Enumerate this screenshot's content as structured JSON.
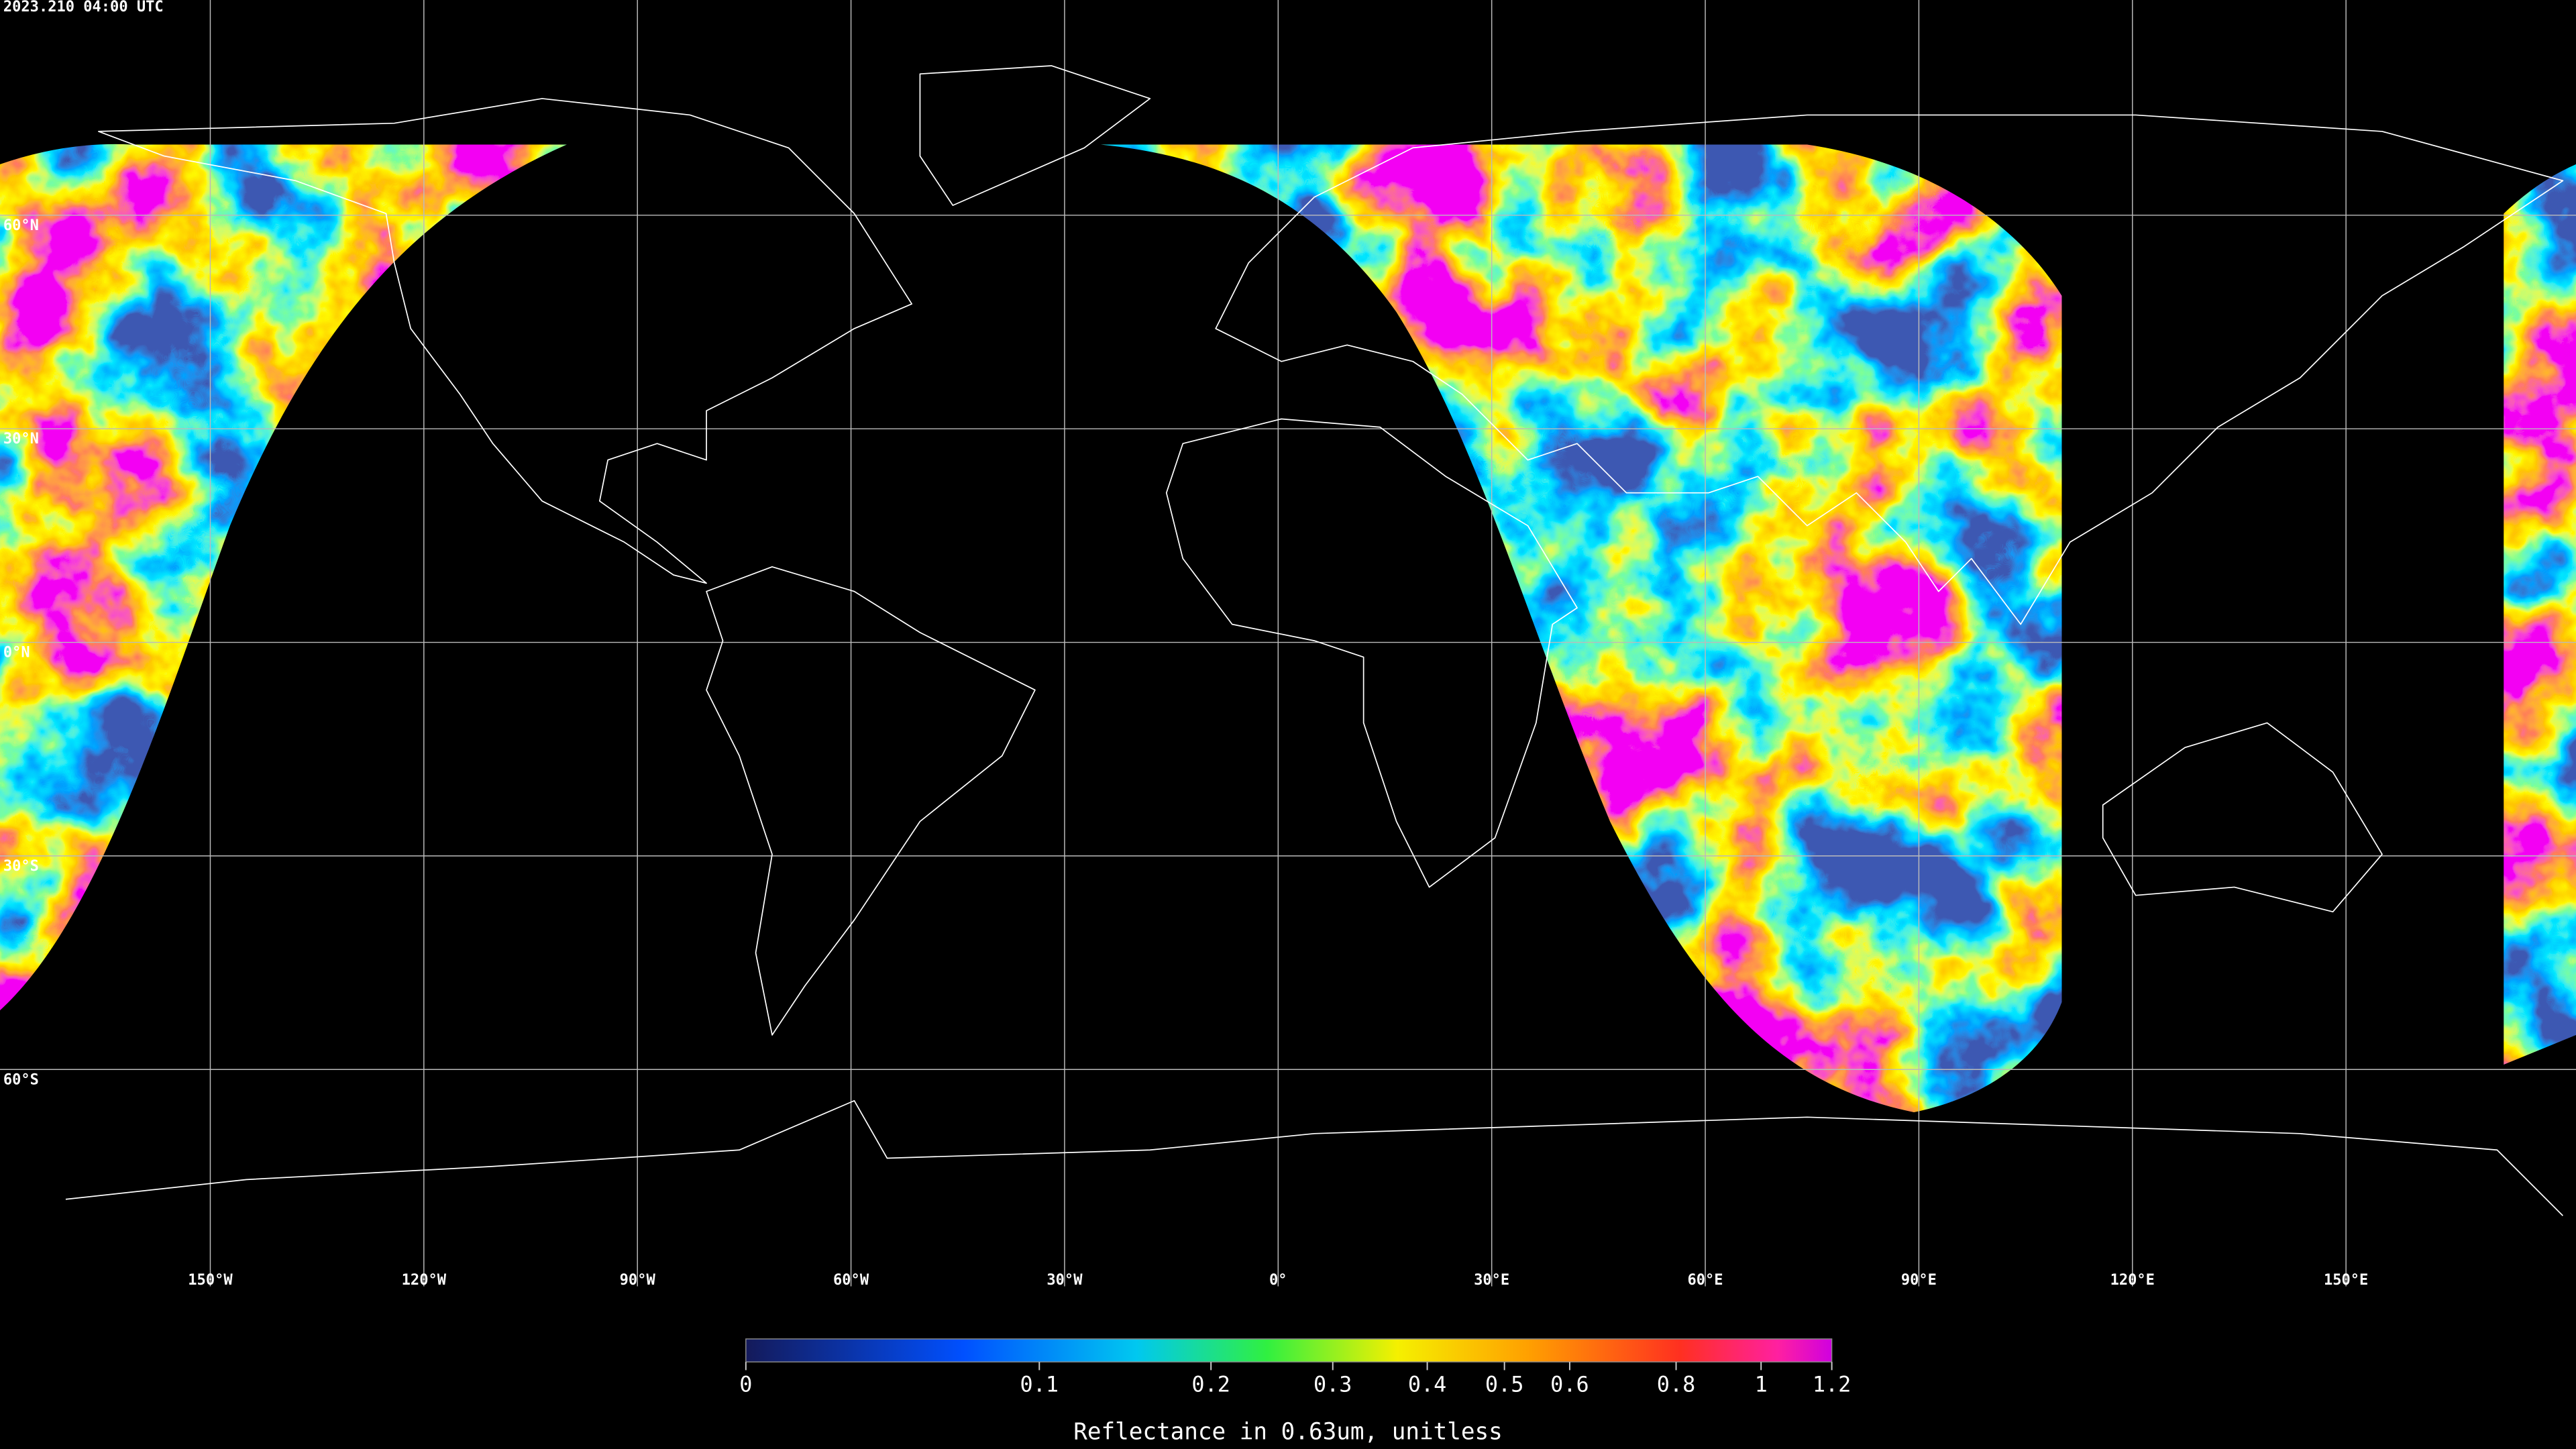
{
  "title": "2023.210 04:00 UTC",
  "map": {
    "type": "map",
    "projection": "equirectangular",
    "xlim": [
      -180,
      180
    ],
    "ylim": [
      -90,
      90
    ],
    "lon_lines": [
      {
        "value": -150,
        "label": "150°W"
      },
      {
        "value": -120,
        "label": "120°W"
      },
      {
        "value": -90,
        "label": "90°W"
      },
      {
        "value": -60,
        "label": "60°W"
      },
      {
        "value": -30,
        "label": "30°W"
      },
      {
        "value": 0,
        "label": "0°"
      },
      {
        "value": 30,
        "label": "30°E"
      },
      {
        "value": 60,
        "label": "60°E"
      },
      {
        "value": 90,
        "label": "90°E"
      },
      {
        "value": 120,
        "label": "120°E"
      },
      {
        "value": 150,
        "label": "150°E"
      }
    ],
    "lat_lines": [
      {
        "value": 60,
        "label": "60°N"
      },
      {
        "value": 30,
        "label": "30°N"
      },
      {
        "value": 0,
        "label": "0°N"
      },
      {
        "value": -30,
        "label": "30°S"
      },
      {
        "value": -60,
        "label": "60°S"
      }
    ]
  },
  "colorbar": {
    "label": "Reflectance in 0.63um, unitless",
    "lim": [
      0,
      1.2
    ],
    "ticks": [
      0,
      0.1,
      0.2,
      0.3,
      0.4,
      0.5,
      0.6,
      0.8,
      1,
      1.2
    ]
  }
}
